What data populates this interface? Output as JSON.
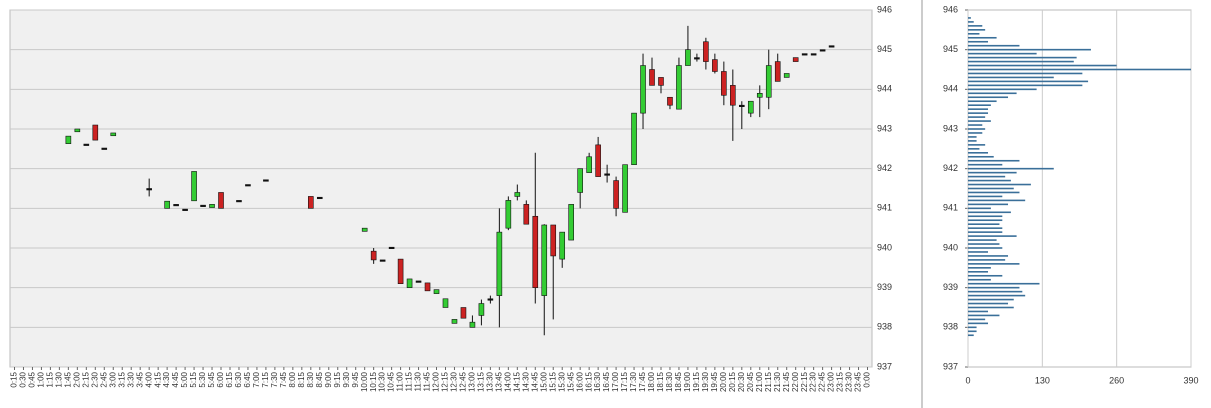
{
  "chart_data": [
    {
      "type": "candlestick",
      "x": [
        "0:15",
        "0:30",
        "0:45",
        "1:00",
        "1:15",
        "1:30",
        "1:45",
        "2:00",
        "2:15",
        "2:30",
        "2:45",
        "3:00",
        "3:15",
        "3:30",
        "3:45",
        "4:00",
        "4:15",
        "4:30",
        "4:45",
        "5:00",
        "5:15",
        "5:30",
        "5:45",
        "6:00",
        "6:15",
        "6:30",
        "6:45",
        "7:00",
        "7:15",
        "7:30",
        "7:45",
        "8:00",
        "8:15",
        "8:30",
        "8:45",
        "9:00",
        "9:15",
        "9:30",
        "9:45",
        "10:00",
        "10:15",
        "10:30",
        "10:45",
        "11:00",
        "11:15",
        "11:30",
        "11:45",
        "12:00",
        "12:15",
        "12:30",
        "12:45",
        "13:00",
        "13:15",
        "13:30",
        "13:45",
        "14:00",
        "14:15",
        "14:30",
        "14:45",
        "15:00",
        "15:15",
        "15:30",
        "15:45",
        "16:00",
        "16:15",
        "16:30",
        "16:45",
        "17:00",
        "17:15",
        "17:30",
        "17:45",
        "18:00",
        "18:15",
        "18:30",
        "18:45",
        "19:00",
        "19:15",
        "19:30",
        "19:45",
        "20:00",
        "20:15",
        "20:30",
        "20:45",
        "21:00",
        "21:15",
        "21:30",
        "21:45",
        "22:00",
        "22:15",
        "22:30",
        "22:45",
        "23:00",
        "23:15",
        "23:30",
        "23:45",
        "0:00"
      ],
      "open": [
        null,
        null,
        null,
        null,
        null,
        null,
        942.63,
        942.93,
        942.62,
        943.1,
        942.52,
        942.83,
        null,
        null,
        null,
        941.5,
        null,
        941.0,
        941.1,
        940.98,
        941.19,
        941.08,
        941.02,
        941.4,
        null,
        941.2,
        941.6,
        null,
        941.72,
        null,
        null,
        null,
        null,
        941.3,
        941.28,
        null,
        null,
        null,
        null,
        940.42,
        939.92,
        939.7,
        940.02,
        939.72,
        939.0,
        939.17,
        939.12,
        938.85,
        938.5,
        938.1,
        938.5,
        938.0,
        938.3,
        938.72,
        938.8,
        940.5,
        941.3,
        941.1,
        940.8,
        938.8,
        940.58,
        939.72,
        940.2,
        941.4,
        941.9,
        942.6,
        941.87,
        941.7,
        940.9,
        942.1,
        943.4,
        944.5,
        944.3,
        943.8,
        943.5,
        944.6,
        944.8,
        945.2,
        944.75,
        944.45,
        944.1,
        943.6,
        943.4,
        943.8,
        943.8,
        944.7,
        944.3,
        944.8,
        944.9,
        944.9,
        945.0,
        945.1,
        null,
        null,
        null,
        null
      ],
      "high": [
        null,
        null,
        null,
        null,
        null,
        null,
        942.82,
        943.0,
        942.62,
        943.1,
        942.52,
        942.9,
        null,
        null,
        null,
        941.75,
        null,
        941.18,
        941.1,
        940.98,
        941.93,
        941.08,
        941.1,
        941.4,
        null,
        941.2,
        941.6,
        null,
        941.72,
        null,
        null,
        null,
        null,
        941.3,
        941.28,
        null,
        null,
        null,
        null,
        940.5,
        940.0,
        939.7,
        940.02,
        939.72,
        939.22,
        939.17,
        939.12,
        938.95,
        938.72,
        938.2,
        938.5,
        938.3,
        938.7,
        938.8,
        941.0,
        941.3,
        941.6,
        941.2,
        942.4,
        940.6,
        940.58,
        940.4,
        941.1,
        942.0,
        942.4,
        942.8,
        942.1,
        941.8,
        942.1,
        943.4,
        944.9,
        944.8,
        944.3,
        943.8,
        944.8,
        945.6,
        944.9,
        945.3,
        944.9,
        944.7,
        944.5,
        943.7,
        943.7,
        944.1,
        945.0,
        944.9,
        944.4,
        944.8,
        944.9,
        944.9,
        945.0,
        945.1,
        null,
        null,
        null,
        null
      ],
      "low": [
        null,
        null,
        null,
        null,
        null,
        null,
        942.63,
        942.93,
        942.62,
        942.72,
        942.52,
        942.83,
        null,
        null,
        null,
        941.3,
        null,
        941.0,
        941.1,
        940.98,
        941.19,
        941.08,
        941.02,
        941.0,
        null,
        941.2,
        941.6,
        null,
        941.72,
        null,
        null,
        null,
        null,
        941.0,
        941.28,
        null,
        null,
        null,
        null,
        940.42,
        939.6,
        939.7,
        940.02,
        939.1,
        939.0,
        939.17,
        938.92,
        938.85,
        938.5,
        938.1,
        938.23,
        938.0,
        938.05,
        938.6,
        938.0,
        940.45,
        941.2,
        940.6,
        938.6,
        937.8,
        938.2,
        939.5,
        940.2,
        941.0,
        941.9,
        941.8,
        941.65,
        940.8,
        940.9,
        942.1,
        943.0,
        944.1,
        943.9,
        943.5,
        943.5,
        944.6,
        944.7,
        944.5,
        944.4,
        943.6,
        942.7,
        943.0,
        943.3,
        943.3,
        943.5,
        944.2,
        944.3,
        944.7,
        944.9,
        944.9,
        945.0,
        945.1,
        null,
        null,
        null,
        null
      ],
      "close": [
        null,
        null,
        null,
        null,
        null,
        null,
        942.82,
        943.0,
        942.62,
        942.72,
        942.52,
        942.9,
        null,
        null,
        null,
        941.5,
        null,
        941.18,
        941.1,
        940.98,
        941.93,
        941.08,
        941.1,
        941.0,
        null,
        941.2,
        941.6,
        null,
        941.72,
        null,
        null,
        null,
        null,
        941.0,
        941.28,
        null,
        null,
        null,
        null,
        940.5,
        939.7,
        939.7,
        940.02,
        939.1,
        939.22,
        939.17,
        938.92,
        938.95,
        938.72,
        938.2,
        938.23,
        938.13,
        938.6,
        938.72,
        940.4,
        941.2,
        941.4,
        940.6,
        939.0,
        940.58,
        939.8,
        940.4,
        941.1,
        942.0,
        942.3,
        941.8,
        941.87,
        941.0,
        942.1,
        943.4,
        944.6,
        944.1,
        944.1,
        943.6,
        944.6,
        945.0,
        944.8,
        944.7,
        944.45,
        943.85,
        943.6,
        943.6,
        943.7,
        943.9,
        944.6,
        944.2,
        944.4,
        944.7,
        944.9,
        944.9,
        945.0,
        945.1,
        null,
        null,
        null,
        null
      ],
      "up_color": "#33cc33",
      "down_color": "#cc2222",
      "ylim": [
        937,
        946
      ],
      "yticks": [
        937,
        938,
        939,
        940,
        941,
        942,
        943,
        944,
        945,
        946
      ],
      "grid": true
    },
    {
      "type": "barh",
      "y": [
        945.8,
        945.7,
        945.6,
        945.5,
        945.4,
        945.3,
        945.2,
        945.1,
        945.0,
        944.9,
        944.8,
        944.7,
        944.6,
        944.5,
        944.4,
        944.3,
        944.2,
        944.1,
        944.0,
        943.9,
        943.8,
        943.7,
        943.6,
        943.5,
        943.4,
        943.3,
        943.2,
        943.1,
        943.0,
        942.9,
        942.8,
        942.7,
        942.6,
        942.5,
        942.4,
        942.3,
        942.2,
        942.1,
        942.0,
        941.9,
        941.8,
        941.7,
        941.6,
        941.5,
        941.4,
        941.3,
        941.2,
        941.1,
        941.0,
        940.9,
        940.8,
        940.7,
        940.6,
        940.5,
        940.4,
        940.3,
        940.2,
        940.1,
        940.0,
        939.9,
        939.8,
        939.7,
        939.6,
        939.5,
        939.4,
        939.3,
        939.2,
        939.1,
        939.0,
        938.9,
        938.8,
        938.7,
        938.6,
        938.5,
        938.4,
        938.3,
        938.2,
        938.1,
        938.0,
        937.9,
        937.8
      ],
      "values": [
        5,
        10,
        25,
        30,
        20,
        50,
        35,
        90,
        215,
        120,
        190,
        185,
        260,
        390,
        200,
        150,
        210,
        200,
        120,
        85,
        70,
        50,
        40,
        35,
        35,
        30,
        40,
        25,
        30,
        25,
        15,
        15,
        30,
        20,
        35,
        45,
        90,
        60,
        150,
        85,
        65,
        75,
        110,
        80,
        90,
        60,
        100,
        70,
        40,
        75,
        60,
        60,
        55,
        60,
        60,
        85,
        50,
        55,
        60,
        35,
        70,
        65,
        90,
        40,
        35,
        60,
        40,
        125,
        90,
        95,
        100,
        80,
        70,
        80,
        35,
        55,
        30,
        35,
        15,
        15,
        10
      ],
      "color": "#3a6f99",
      "xlim": [
        0,
        390
      ],
      "xticks": [
        0,
        130,
        260,
        390
      ],
      "ylim": [
        937,
        946
      ],
      "yticks": [
        937,
        938,
        939,
        940,
        941,
        942,
        943,
        944,
        945,
        946
      ],
      "grid": true
    }
  ]
}
